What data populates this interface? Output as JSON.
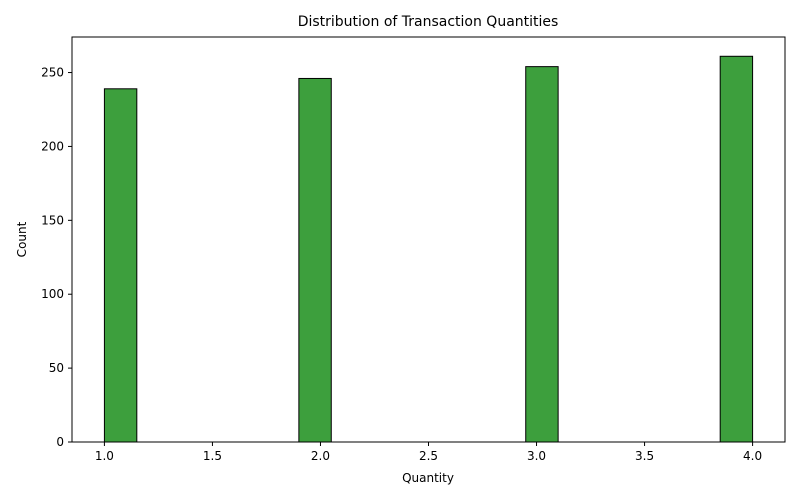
{
  "chart_data": {
    "type": "bar",
    "title": "Distribution of Transaction Quantities",
    "xlabel": "Quantity",
    "ylabel": "Count",
    "xlim": [
      0.85,
      4.15
    ],
    "ylim": [
      0,
      274.05
    ],
    "xticks": [
      1.0,
      1.5,
      2.0,
      2.5,
      3.0,
      3.5,
      4.0
    ],
    "xtick_labels": [
      "1.0",
      "1.5",
      "2.0",
      "2.5",
      "3.0",
      "3.5",
      "4.0"
    ],
    "yticks": [
      0,
      50,
      100,
      150,
      200,
      250
    ],
    "ytick_labels": [
      "0",
      "50",
      "100",
      "150",
      "200",
      "250"
    ],
    "bin_width": 0.15,
    "bars": [
      {
        "x0": 1.0,
        "x1": 1.15,
        "value": 239
      },
      {
        "x0": 1.9,
        "x1": 2.05,
        "value": 246
      },
      {
        "x0": 2.95,
        "x1": 3.1,
        "value": 254
      },
      {
        "x0": 3.85,
        "x1": 4.0,
        "value": 261
      }
    ],
    "bar_color": "#3d9f3d",
    "edge_color": "#000000",
    "grid": false,
    "legend": "none"
  }
}
